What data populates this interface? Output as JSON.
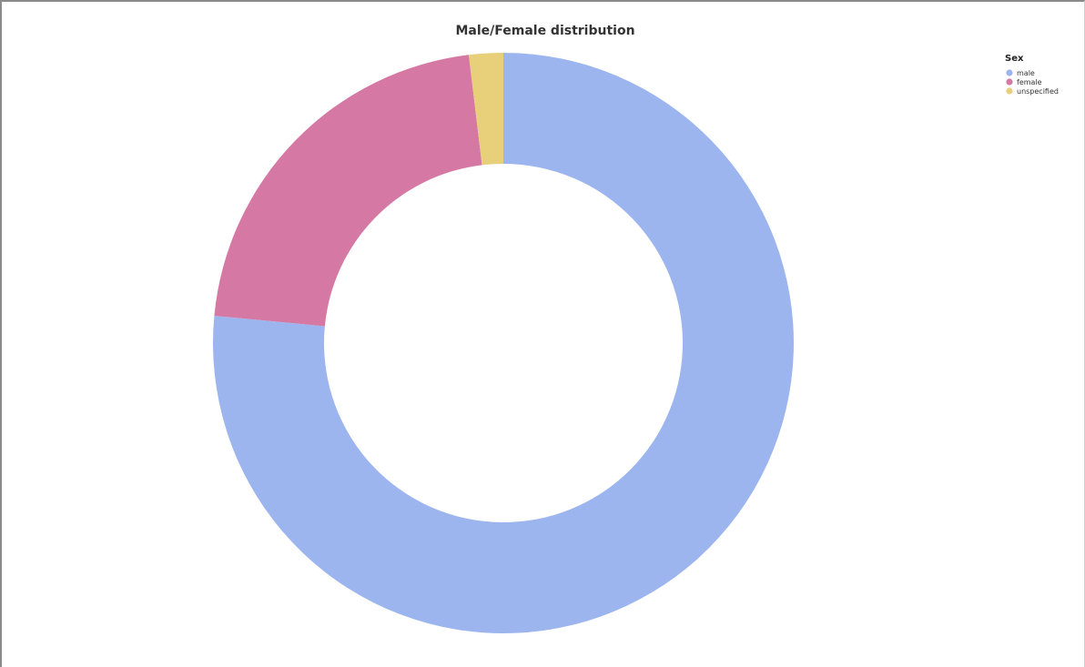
{
  "chart_data": {
    "type": "pie",
    "donut": true,
    "title": "Male/Female distribution",
    "legend": {
      "title": "Sex",
      "placement": "top-right"
    },
    "slices": [
      {
        "label": "male",
        "value": 76.5,
        "color": "#9db5ee"
      },
      {
        "label": "female",
        "value": 21.6,
        "color": "#d678a4"
      },
      {
        "label": "unspecified",
        "value": 1.9,
        "color": "#e8d07a"
      }
    ]
  }
}
